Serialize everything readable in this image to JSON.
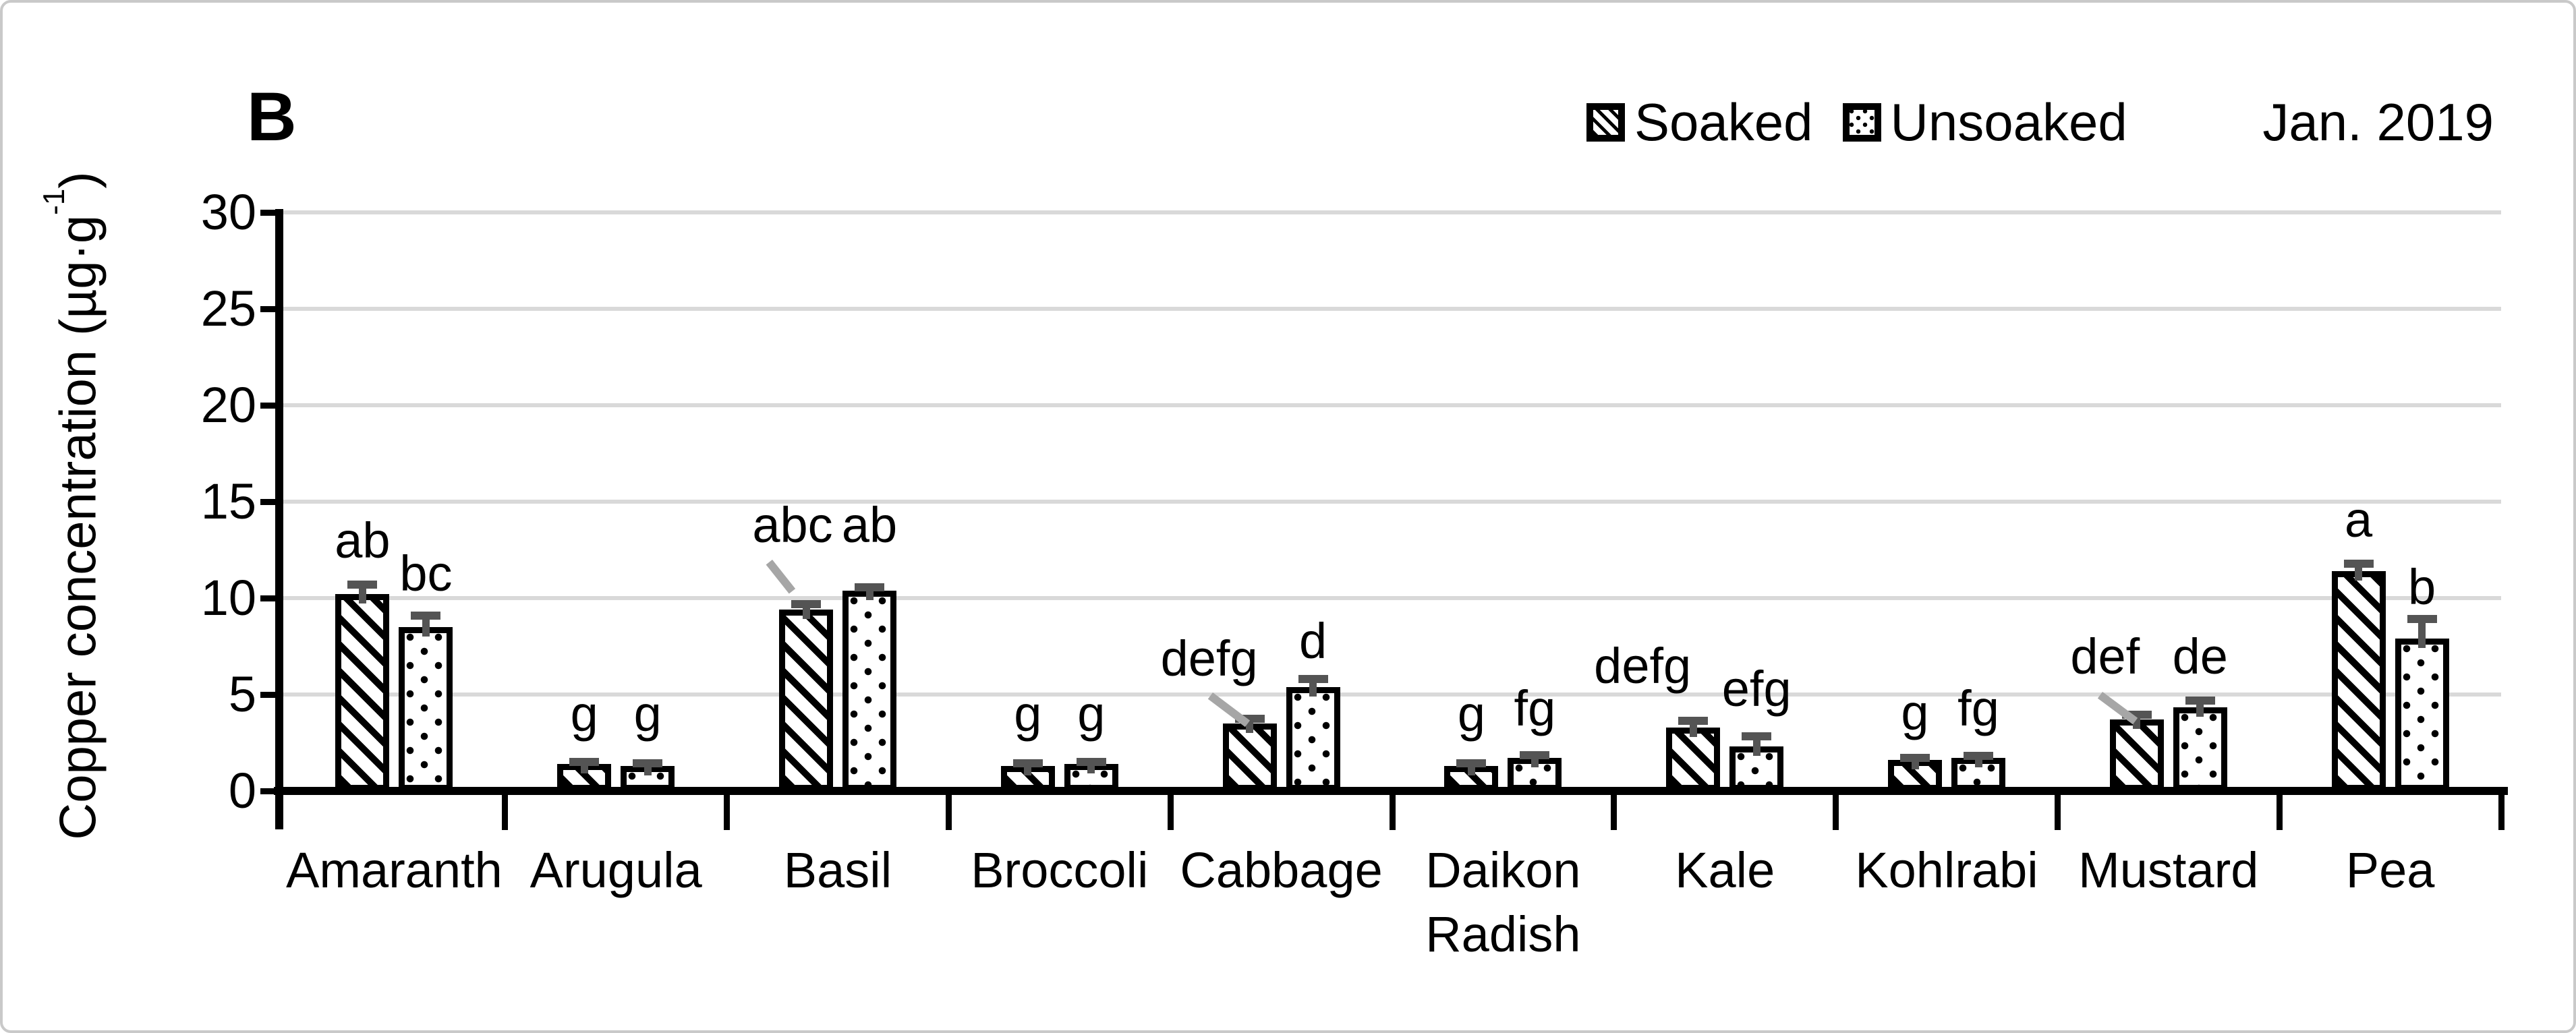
{
  "panel_label": "B",
  "date_label": "Jan. 2019",
  "legend": {
    "items": [
      {
        "label": "Soaked",
        "pattern": "diagonal-hatch"
      },
      {
        "label": "Unsoaked",
        "pattern": "dotted"
      }
    ]
  },
  "y_axis_title": {
    "main": "Copper concentration (µg·g",
    "sup": "-1",
    "close": ")"
  },
  "colors": {
    "gridline": "#d9d9d9",
    "axis": "#000000",
    "error_bar": "#545454",
    "leader_line": "#a6a6a6",
    "frame_border": "#c9c9c9",
    "bar_fill": "#ffffff",
    "bar_border": "#000000",
    "text": "#000000"
  },
  "chart_data": {
    "type": "bar",
    "title": "",
    "xlabel": "",
    "ylabel": "Copper concentration (µg·g-1)",
    "ylim": [
      0,
      30
    ],
    "yticks": [
      0,
      5,
      10,
      15,
      20,
      25,
      30
    ],
    "grid": true,
    "legend_position": "top-right",
    "categories": [
      "Amaranth",
      "Arugula",
      "Basil",
      "Broccoli",
      "Cabbage",
      "Daikon Radish",
      "Kale",
      "Kohlrabi",
      "Mustard",
      "Pea"
    ],
    "series": [
      {
        "name": "Soaked",
        "pattern": "diagonal-hatch",
        "values": [
          10.2,
          1.4,
          9.4,
          1.3,
          3.5,
          1.3,
          3.3,
          1.6,
          3.7,
          11.4
        ],
        "errors": [
          0.5,
          0.12,
          0.3,
          0.12,
          0.25,
          0.12,
          0.35,
          0.12,
          0.25,
          0.4
        ],
        "letters": [
          "ab",
          "g",
          "abc",
          "g",
          "defg",
          "g",
          "defg",
          "g",
          "def",
          "a"
        ]
      },
      {
        "name": "Unsoaked",
        "pattern": "dotted",
        "values": [
          8.5,
          1.3,
          10.4,
          1.4,
          5.4,
          1.7,
          2.3,
          1.7,
          4.35,
          7.9
        ],
        "errors": [
          0.6,
          0.12,
          0.15,
          0.12,
          0.4,
          0.15,
          0.55,
          0.12,
          0.35,
          1.0
        ],
        "letters": [
          "bc",
          "g",
          "ab",
          "g",
          "d",
          "fg",
          "efg",
          "fg",
          "de",
          "b"
        ]
      }
    ],
    "letter_layout": {
      "Soaked": [
        {
          "dx": 0,
          "y": 12.2
        },
        {
          "dx": 0,
          "y": 3.2
        },
        {
          "dx": -20,
          "y": 13.0,
          "leader": {
            "x1": -50,
            "y1": 12.0,
            "x2": -16,
            "y2": 10.5
          }
        },
        {
          "dx": 0,
          "y": 3.2
        },
        {
          "dx": -60,
          "y": 6.1,
          "leader": {
            "x1": -55,
            "y1": 5.1,
            "x2": 0,
            "y2": 3.65
          }
        },
        {
          "dx": 0,
          "y": 3.2
        },
        {
          "dx": -75,
          "y": 5.7
        },
        {
          "dx": 0,
          "y": 3.3
        },
        {
          "dx": -47,
          "y": 6.2,
          "leader": {
            "x1": -51,
            "y1": 5.15,
            "x2": 1,
            "y2": 3.8
          }
        },
        {
          "dx": 0,
          "y": 13.3
        }
      ],
      "Unsoaked": [
        {
          "dx": 0,
          "y": 10.5
        },
        {
          "dx": 0,
          "y": 3.2
        },
        {
          "dx": 0,
          "y": 13.0
        },
        {
          "dx": 0,
          "y": 3.2
        },
        {
          "dx": 0,
          "y": 7.0
        },
        {
          "dx": 0,
          "y": 3.5
        },
        {
          "dx": 0,
          "y": 4.5
        },
        {
          "dx": 0,
          "y": 3.5
        },
        {
          "dx": 0,
          "y": 6.2
        },
        {
          "dx": 0,
          "y": 9.8
        }
      ]
    }
  }
}
